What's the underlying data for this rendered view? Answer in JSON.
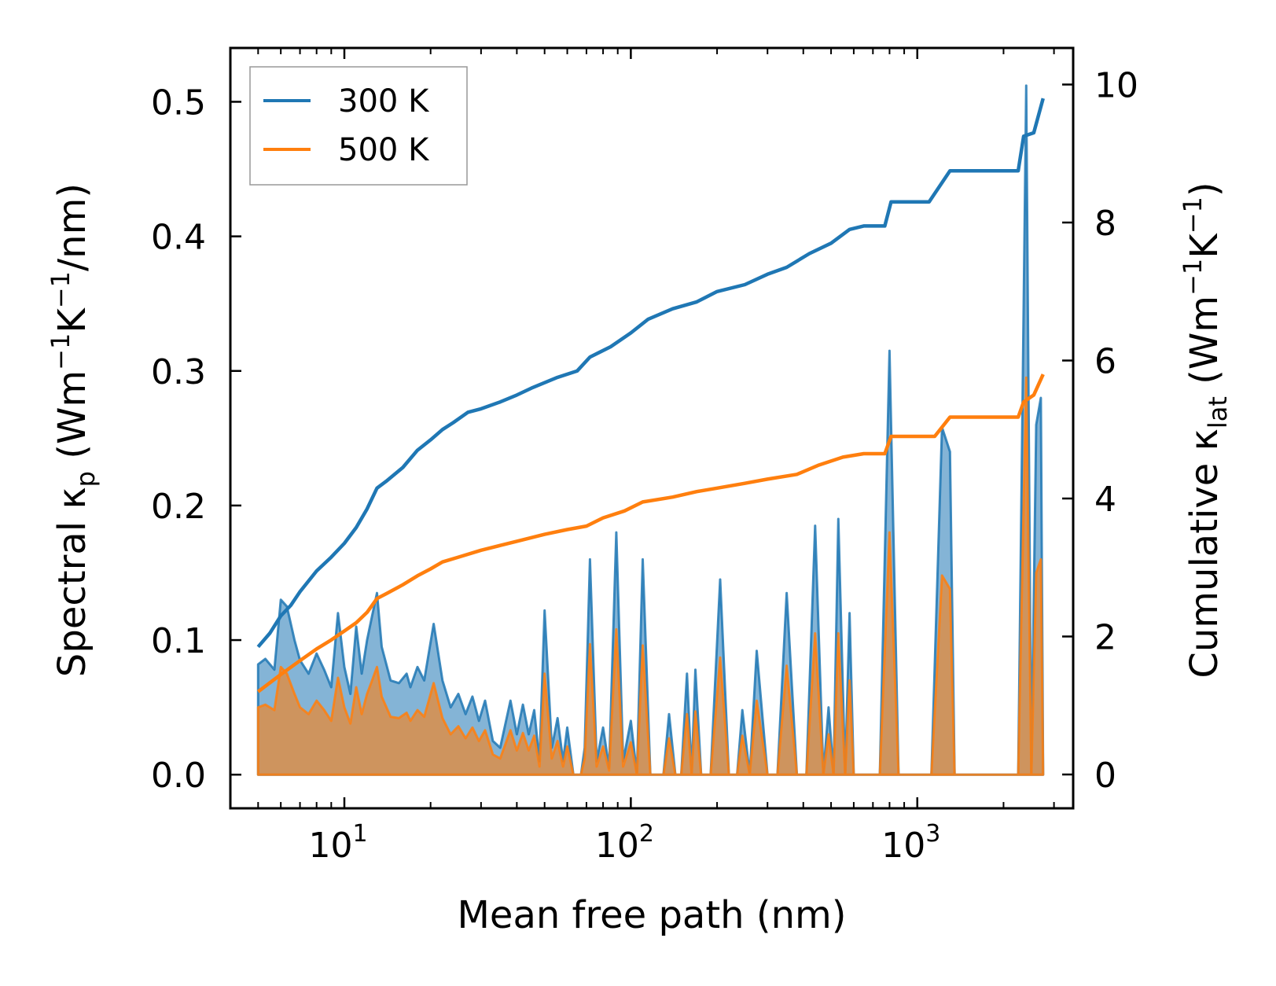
{
  "chart_data": {
    "type": "line",
    "title": "",
    "xlabel": "Mean free path (nm)",
    "ylabel_left": {
      "prefix": "Spectral κ",
      "sub": "p",
      "suffix": " (Wm",
      "sup1": "−1",
      "mid": "K",
      "sup2": "−1",
      "end": "/nm)"
    },
    "ylabel_right": {
      "prefix": "Cumulative κ",
      "sub": "lat",
      "suffix": " (Wm",
      "sup1": "−1",
      "mid": "K",
      "sup2": "−1",
      "end": ")"
    },
    "xscale": "log",
    "xlim": [
      4.0,
      3500
    ],
    "ylim_left": [
      -0.025,
      0.54
    ],
    "ylim_right": [
      -0.49,
      10.53
    ],
    "x_ticks": [
      {
        "value": 10,
        "base": "10",
        "exp": "1"
      },
      {
        "value": 100,
        "base": "10",
        "exp": "2"
      },
      {
        "value": 1000,
        "base": "10",
        "exp": "3"
      }
    ],
    "y_ticks_left": [
      "0.0",
      "0.1",
      "0.2",
      "0.3",
      "0.4",
      "0.5"
    ],
    "y_ticks_right": [
      "0",
      "2",
      "4",
      "6",
      "8",
      "10"
    ],
    "legend": {
      "position": "top-left",
      "entries": [
        {
          "label": "300 K",
          "color": "#1f77b4"
        },
        {
          "label": "500 K",
          "color": "#ff7f0e"
        }
      ]
    },
    "series": [
      {
        "name": "300 K",
        "color": "#1f77b4",
        "spectral": [
          [
            5.0,
            0.082
          ],
          [
            5.3,
            0.086
          ],
          [
            5.7,
            0.078
          ],
          [
            6.0,
            0.13
          ],
          [
            6.3,
            0.125
          ],
          [
            6.7,
            0.1
          ],
          [
            7.0,
            0.085
          ],
          [
            7.5,
            0.075
          ],
          [
            8.0,
            0.09
          ],
          [
            8.5,
            0.078
          ],
          [
            9.0,
            0.065
          ],
          [
            9.5,
            0.12
          ],
          [
            10.0,
            0.08
          ],
          [
            10.5,
            0.06
          ],
          [
            11.0,
            0.11
          ],
          [
            11.5,
            0.075
          ],
          [
            12.0,
            0.1
          ],
          [
            12.5,
            0.118
          ],
          [
            13.0,
            0.135
          ],
          [
            13.5,
            0.095
          ],
          [
            14.5,
            0.07
          ],
          [
            15.5,
            0.068
          ],
          [
            16.5,
            0.075
          ],
          [
            17.0,
            0.065
          ],
          [
            18.0,
            0.08
          ],
          [
            19.0,
            0.07
          ],
          [
            20.5,
            0.112
          ],
          [
            22.0,
            0.07
          ],
          [
            23.5,
            0.05
          ],
          [
            25.0,
            0.06
          ],
          [
            26.5,
            0.045
          ],
          [
            28.0,
            0.058
          ],
          [
            29.5,
            0.04
          ],
          [
            31.0,
            0.055
          ],
          [
            33.0,
            0.025
          ],
          [
            35.0,
            0.02
          ],
          [
            38.0,
            0.055
          ],
          [
            40.0,
            0.03
          ],
          [
            42.0,
            0.052
          ],
          [
            44.0,
            0.03
          ],
          [
            46.0,
            0.048
          ],
          [
            48.0,
            0.01
          ],
          [
            50.0,
            0.122
          ],
          [
            53.0,
            0.02
          ],
          [
            55.5,
            0.042
          ],
          [
            58.0,
            0.01
          ],
          [
            60.0,
            0.035
          ],
          [
            63.0,
            0.0
          ],
          [
            67.0,
            0.0
          ],
          [
            69.0,
            0.02
          ],
          [
            72.0,
            0.16
          ],
          [
            76.0,
            0.01
          ],
          [
            80.0,
            0.035
          ],
          [
            84.0,
            0.005
          ],
          [
            89.0,
            0.18
          ],
          [
            94.0,
            0.01
          ],
          [
            100.0,
            0.04
          ],
          [
            105.0,
            0.0
          ],
          [
            110.0,
            0.16
          ],
          [
            117.0,
            0.0
          ],
          [
            123.0,
            0.0
          ],
          [
            130.0,
            0.0
          ],
          [
            136.0,
            0.045
          ],
          [
            143.0,
            0.0
          ],
          [
            150.0,
            0.0
          ],
          [
            157.0,
            0.075
          ],
          [
            163.0,
            0.0
          ],
          [
            168.0,
            0.078
          ],
          [
            176.0,
            0.0
          ],
          [
            190.0,
            0.0
          ],
          [
            205.0,
            0.145
          ],
          [
            220.0,
            0.0
          ],
          [
            235.0,
            0.0
          ],
          [
            245.0,
            0.048
          ],
          [
            260.0,
            0.0
          ],
          [
            275.0,
            0.092
          ],
          [
            300.0,
            0.0
          ],
          [
            325.0,
            0.0
          ],
          [
            350.0,
            0.135
          ],
          [
            380.0,
            0.0
          ],
          [
            410.0,
            0.0
          ],
          [
            440.0,
            0.185
          ],
          [
            470.0,
            0.0
          ],
          [
            490.0,
            0.05
          ],
          [
            510.0,
            0.0
          ],
          [
            530.0,
            0.19
          ],
          [
            560.0,
            0.0
          ],
          [
            580.0,
            0.12
          ],
          [
            600.0,
            0.0
          ],
          [
            650.0,
            0.0
          ],
          [
            740.0,
            0.0
          ],
          [
            800.0,
            0.315
          ],
          [
            860.0,
            0.0
          ],
          [
            1120.0,
            0.0
          ],
          [
            1220.0,
            0.258
          ],
          [
            1300.0,
            0.24
          ],
          [
            1350.0,
            0.0
          ],
          [
            2250.0,
            0.0
          ],
          [
            2400.0,
            0.512
          ],
          [
            2500.0,
            0.0
          ],
          [
            2600.0,
            0.26
          ],
          [
            2700.0,
            0.28
          ],
          [
            2750.0,
            0.0
          ]
        ],
        "cumulative": [
          [
            5.0,
            1.85
          ],
          [
            5.5,
            2.05
          ],
          [
            6.0,
            2.3
          ],
          [
            6.5,
            2.45
          ],
          [
            7.0,
            2.65
          ],
          [
            8.0,
            2.95
          ],
          [
            9.0,
            3.15
          ],
          [
            10.0,
            3.35
          ],
          [
            11.0,
            3.58
          ],
          [
            12.0,
            3.85
          ],
          [
            13.0,
            4.15
          ],
          [
            14.0,
            4.25
          ],
          [
            16.0,
            4.45
          ],
          [
            18.0,
            4.7
          ],
          [
            20.0,
            4.85
          ],
          [
            22.0,
            5.0
          ],
          [
            24.0,
            5.1
          ],
          [
            27.0,
            5.25
          ],
          [
            30.0,
            5.3
          ],
          [
            35.0,
            5.4
          ],
          [
            40.0,
            5.5
          ],
          [
            45.0,
            5.6
          ],
          [
            55.0,
            5.75
          ],
          [
            65.0,
            5.85
          ],
          [
            72.0,
            6.05
          ],
          [
            85.0,
            6.2
          ],
          [
            100.0,
            6.4
          ],
          [
            115.0,
            6.6
          ],
          [
            140.0,
            6.75
          ],
          [
            170.0,
            6.85
          ],
          [
            200.0,
            7.0
          ],
          [
            250.0,
            7.1
          ],
          [
            300.0,
            7.25
          ],
          [
            350.0,
            7.35
          ],
          [
            420.0,
            7.55
          ],
          [
            500.0,
            7.7
          ],
          [
            580.0,
            7.9
          ],
          [
            650.0,
            7.95
          ],
          [
            770.0,
            7.95
          ],
          [
            810.0,
            8.3
          ],
          [
            1100.0,
            8.3
          ],
          [
            1300.0,
            8.75
          ],
          [
            2250.0,
            8.75
          ],
          [
            2350.0,
            9.25
          ],
          [
            2550.0,
            9.3
          ],
          [
            2750.0,
            9.8
          ]
        ]
      },
      {
        "name": "500 K",
        "color": "#ff7f0e",
        "spectral": [
          [
            5.0,
            0.05
          ],
          [
            5.3,
            0.052
          ],
          [
            5.7,
            0.048
          ],
          [
            6.0,
            0.08
          ],
          [
            6.3,
            0.075
          ],
          [
            6.7,
            0.06
          ],
          [
            7.0,
            0.05
          ],
          [
            7.5,
            0.045
          ],
          [
            8.0,
            0.055
          ],
          [
            8.5,
            0.048
          ],
          [
            9.0,
            0.04
          ],
          [
            9.5,
            0.072
          ],
          [
            10.0,
            0.05
          ],
          [
            10.5,
            0.038
          ],
          [
            11.0,
            0.065
          ],
          [
            11.5,
            0.045
          ],
          [
            12.0,
            0.06
          ],
          [
            12.5,
            0.07
          ],
          [
            13.0,
            0.08
          ],
          [
            13.5,
            0.058
          ],
          [
            14.5,
            0.043
          ],
          [
            15.5,
            0.042
          ],
          [
            16.5,
            0.046
          ],
          [
            17.0,
            0.04
          ],
          [
            18.0,
            0.048
          ],
          [
            19.0,
            0.043
          ],
          [
            20.5,
            0.068
          ],
          [
            22.0,
            0.042
          ],
          [
            23.5,
            0.03
          ],
          [
            25.0,
            0.036
          ],
          [
            26.5,
            0.027
          ],
          [
            28.0,
            0.035
          ],
          [
            29.5,
            0.025
          ],
          [
            31.0,
            0.033
          ],
          [
            33.0,
            0.015
          ],
          [
            35.0,
            0.012
          ],
          [
            38.0,
            0.033
          ],
          [
            40.0,
            0.018
          ],
          [
            42.0,
            0.031
          ],
          [
            44.0,
            0.018
          ],
          [
            46.0,
            0.029
          ],
          [
            48.0,
            0.006
          ],
          [
            50.0,
            0.075
          ],
          [
            53.0,
            0.012
          ],
          [
            55.5,
            0.025
          ],
          [
            58.0,
            0.006
          ],
          [
            60.0,
            0.021
          ],
          [
            63.0,
            0.0
          ],
          [
            67.0,
            0.0
          ],
          [
            69.0,
            0.012
          ],
          [
            72.0,
            0.097
          ],
          [
            76.0,
            0.006
          ],
          [
            80.0,
            0.021
          ],
          [
            84.0,
            0.003
          ],
          [
            89.0,
            0.108
          ],
          [
            94.0,
            0.006
          ],
          [
            100.0,
            0.024
          ],
          [
            105.0,
            0.0
          ],
          [
            110.0,
            0.096
          ],
          [
            117.0,
            0.0
          ],
          [
            123.0,
            0.0
          ],
          [
            130.0,
            0.0
          ],
          [
            136.0,
            0.027
          ],
          [
            143.0,
            0.0
          ],
          [
            150.0,
            0.0
          ],
          [
            157.0,
            0.045
          ],
          [
            163.0,
            0.0
          ],
          [
            168.0,
            0.047
          ],
          [
            176.0,
            0.0
          ],
          [
            190.0,
            0.0
          ],
          [
            205.0,
            0.087
          ],
          [
            220.0,
            0.0
          ],
          [
            235.0,
            0.0
          ],
          [
            245.0,
            0.029
          ],
          [
            260.0,
            0.0
          ],
          [
            275.0,
            0.055
          ],
          [
            300.0,
            0.0
          ],
          [
            325.0,
            0.0
          ],
          [
            350.0,
            0.081
          ],
          [
            380.0,
            0.0
          ],
          [
            410.0,
            0.0
          ],
          [
            440.0,
            0.105
          ],
          [
            470.0,
            0.0
          ],
          [
            490.0,
            0.03
          ],
          [
            510.0,
            0.0
          ],
          [
            530.0,
            0.105
          ],
          [
            560.0,
            0.0
          ],
          [
            580.0,
            0.07
          ],
          [
            600.0,
            0.0
          ],
          [
            650.0,
            0.0
          ],
          [
            740.0,
            0.0
          ],
          [
            800.0,
            0.18
          ],
          [
            860.0,
            0.0
          ],
          [
            1120.0,
            0.0
          ],
          [
            1220.0,
            0.148
          ],
          [
            1300.0,
            0.138
          ],
          [
            1350.0,
            0.0
          ],
          [
            2250.0,
            0.0
          ],
          [
            2400.0,
            0.295
          ],
          [
            2500.0,
            0.0
          ],
          [
            2600.0,
            0.15
          ],
          [
            2700.0,
            0.16
          ],
          [
            2750.0,
            0.0
          ]
        ],
        "cumulative": [
          [
            5.0,
            1.2
          ],
          [
            6.0,
            1.45
          ],
          [
            7.0,
            1.65
          ],
          [
            8.0,
            1.82
          ],
          [
            9.0,
            1.95
          ],
          [
            10.0,
            2.08
          ],
          [
            11.0,
            2.2
          ],
          [
            12.0,
            2.35
          ],
          [
            13.0,
            2.55
          ],
          [
            14.0,
            2.62
          ],
          [
            16.0,
            2.75
          ],
          [
            18.0,
            2.88
          ],
          [
            20.0,
            2.98
          ],
          [
            22.0,
            3.08
          ],
          [
            25.0,
            3.15
          ],
          [
            30.0,
            3.25
          ],
          [
            35.0,
            3.32
          ],
          [
            40.0,
            3.38
          ],
          [
            50.0,
            3.48
          ],
          [
            60.0,
            3.55
          ],
          [
            70.0,
            3.6
          ],
          [
            80.0,
            3.72
          ],
          [
            95.0,
            3.82
          ],
          [
            110.0,
            3.95
          ],
          [
            140.0,
            4.02
          ],
          [
            170.0,
            4.1
          ],
          [
            200.0,
            4.15
          ],
          [
            250.0,
            4.22
          ],
          [
            300.0,
            4.28
          ],
          [
            380.0,
            4.35
          ],
          [
            450.0,
            4.48
          ],
          [
            550.0,
            4.6
          ],
          [
            650.0,
            4.65
          ],
          [
            770.0,
            4.65
          ],
          [
            810.0,
            4.9
          ],
          [
            1150.0,
            4.9
          ],
          [
            1300.0,
            5.18
          ],
          [
            2250.0,
            5.18
          ],
          [
            2350.0,
            5.4
          ],
          [
            2550.0,
            5.5
          ],
          [
            2750.0,
            5.8
          ]
        ]
      }
    ]
  }
}
